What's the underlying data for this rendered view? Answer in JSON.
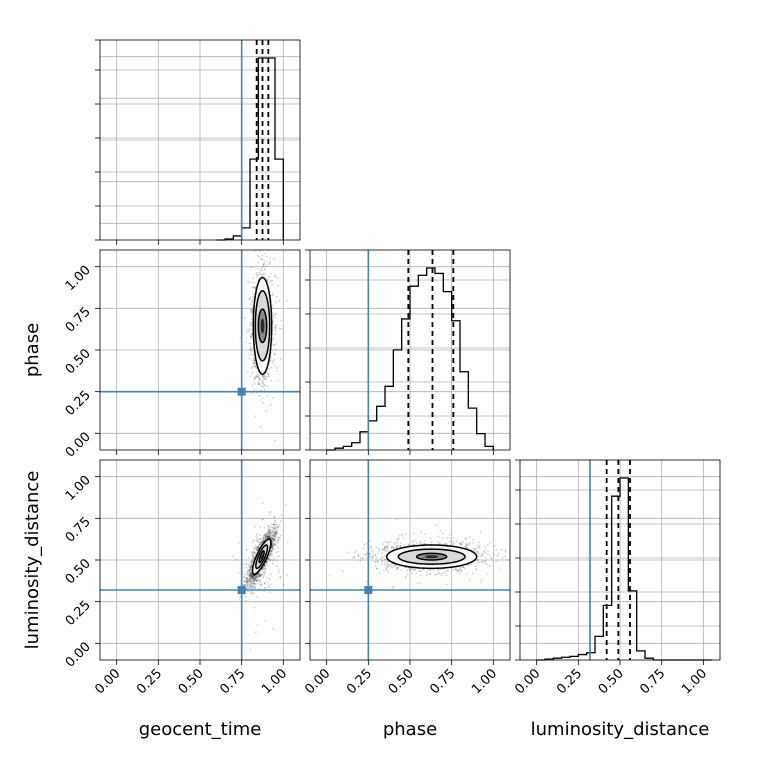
{
  "chart_data": {
    "type": "corner",
    "parameters": [
      "geocent_time",
      "phase",
      "luminosity_distance"
    ],
    "truths": {
      "geocent_time": 0.75,
      "phase": 0.25,
      "luminosity_distance": 0.32
    },
    "truth_color": "#4682b4",
    "axis_range": [
      -0.1,
      1.1
    ],
    "ticks": [
      0.0,
      0.25,
      0.5,
      0.75,
      1.0
    ],
    "tick_labels": [
      "0.00",
      "0.25",
      "0.50",
      "0.75",
      "1.00"
    ],
    "grid": true,
    "histograms": [
      {
        "parameter": "geocent_time",
        "edges": [
          0.6,
          0.65,
          0.7,
          0.75,
          0.8,
          0.85,
          0.9,
          0.95,
          1.0
        ],
        "counts": [
          0.0,
          0.005,
          0.02,
          0.06,
          0.4,
          0.9,
          0.9,
          0.4
        ],
        "quantiles": [
          0.84,
          0.875,
          0.91
        ]
      },
      {
        "parameter": "phase",
        "edges": [
          0.0,
          0.05,
          0.1,
          0.15,
          0.2,
          0.25,
          0.3,
          0.35,
          0.4,
          0.45,
          0.5,
          0.55,
          0.6,
          0.65,
          0.7,
          0.75,
          0.8,
          0.85,
          0.9,
          0.95,
          1.0
        ],
        "counts": [
          0.0,
          0.01,
          0.02,
          0.04,
          0.1,
          0.16,
          0.24,
          0.35,
          0.55,
          0.72,
          0.9,
          0.96,
          1.0,
          0.97,
          0.87,
          0.71,
          0.43,
          0.23,
          0.09,
          0.02
        ],
        "quantiles": [
          0.49,
          0.635,
          0.76
        ]
      },
      {
        "parameter": "luminosity_distance",
        "edges": [
          0.0,
          0.05,
          0.1,
          0.15,
          0.2,
          0.25,
          0.3,
          0.35,
          0.4,
          0.45,
          0.5,
          0.55,
          0.6,
          0.65,
          0.7,
          0.75,
          0.8,
          0.85,
          0.9,
          0.95,
          1.0,
          1.05
        ],
        "counts": [
          0.0,
          0.005,
          0.01,
          0.015,
          0.02,
          0.03,
          0.04,
          0.13,
          0.3,
          0.9,
          1.0,
          0.38,
          0.05,
          0.01,
          0.0,
          0.0,
          0.0,
          0.0,
          0.0,
          0.0,
          0.0
        ],
        "quantiles": [
          0.42,
          0.49,
          0.56
        ]
      }
    ],
    "scatter_2d": [
      {
        "x_param": "geocent_time",
        "y_param": "phase",
        "center": [
          0.875,
          0.645
        ],
        "sigma": [
          0.03,
          0.15
        ],
        "rho": 0.0,
        "contour_levels": [
          {
            "sx": 0.025,
            "sy": 0.1
          },
          {
            "sx": 0.043,
            "sy": 0.21
          },
          {
            "sx": 0.055,
            "sy": 0.29
          }
        ]
      },
      {
        "x_param": "geocent_time",
        "y_param": "luminosity_distance",
        "center": [
          0.87,
          0.52
        ],
        "sigma": [
          0.04,
          0.08
        ],
        "rho": 0.8,
        "contour_levels": [
          {
            "sx": 0.015,
            "sy": 0.035
          },
          {
            "sx": 0.035,
            "sy": 0.07
          },
          {
            "sx": 0.055,
            "sy": 0.105
          }
        ]
      },
      {
        "x_param": "phase",
        "y_param": "luminosity_distance",
        "center": [
          0.63,
          0.52
        ],
        "sigma": [
          0.15,
          0.04
        ],
        "rho": 0.0,
        "contour_levels": [
          {
            "sx": 0.09,
            "sy": 0.02
          },
          {
            "sx": 0.2,
            "sy": 0.045
          },
          {
            "sx": 0.27,
            "sy": 0.07
          }
        ]
      }
    ]
  }
}
